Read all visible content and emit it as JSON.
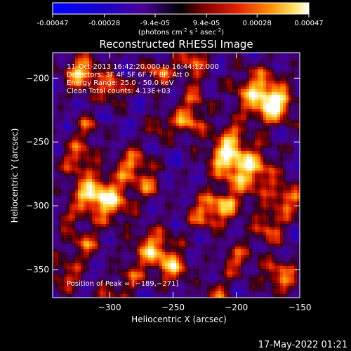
{
  "colorbar": {
    "ticks": [
      "-0.00047",
      "-0.00028",
      "-9.4e-05",
      "9.4e-05",
      "0.00028",
      "0.00047"
    ],
    "tick_values": [
      -0.00047,
      -0.00028,
      -9.4e-05,
      9.4e-05,
      0.00028,
      0.00047
    ],
    "range": [
      -0.00047,
      0.00047
    ],
    "unit_main": "(photons cm",
    "unit_exp1": "-2",
    "unit_mid": " s",
    "unit_exp2": "-1",
    "unit_mid2": " asec",
    "unit_exp3": "-2",
    "unit_end": ")"
  },
  "chart_data": {
    "type": "heatmap",
    "title": "Reconstructed RHESSI Image",
    "xlabel": "Heliocentric X (arcsec)",
    "ylabel": "Heliocentric Y (arcsec)",
    "xlim": [
      -345,
      -150
    ],
    "ylim": [
      -372,
      -180
    ],
    "x_ticks": [
      {
        "value": -300,
        "label": "−300"
      },
      {
        "value": -250,
        "label": "−250"
      },
      {
        "value": -200,
        "label": "−200"
      },
      {
        "value": -150,
        "label": "−150"
      }
    ],
    "y_ticks": [
      {
        "value": -200,
        "label": "−200"
      },
      {
        "value": -250,
        "label": "−250"
      },
      {
        "value": -300,
        "label": "−300"
      },
      {
        "value": -350,
        "label": "−350"
      }
    ],
    "colormap": "rhessi-fire",
    "annotations": [
      "11-Oct-2013 16:42:20.000 to 16:44:12.000",
      "Detectors: 3F 4F 5F 6F 7F 8F, Att 0",
      "Energy Range: 25.0 - 50.0 keV",
      "Clean     Total counts: 4.13E+03"
    ],
    "peak_label": "Position of Peak = [−189,−271]",
    "peak": [
      -189,
      -271
    ]
  },
  "footer": {
    "date": "17-May-2022 01:21"
  }
}
